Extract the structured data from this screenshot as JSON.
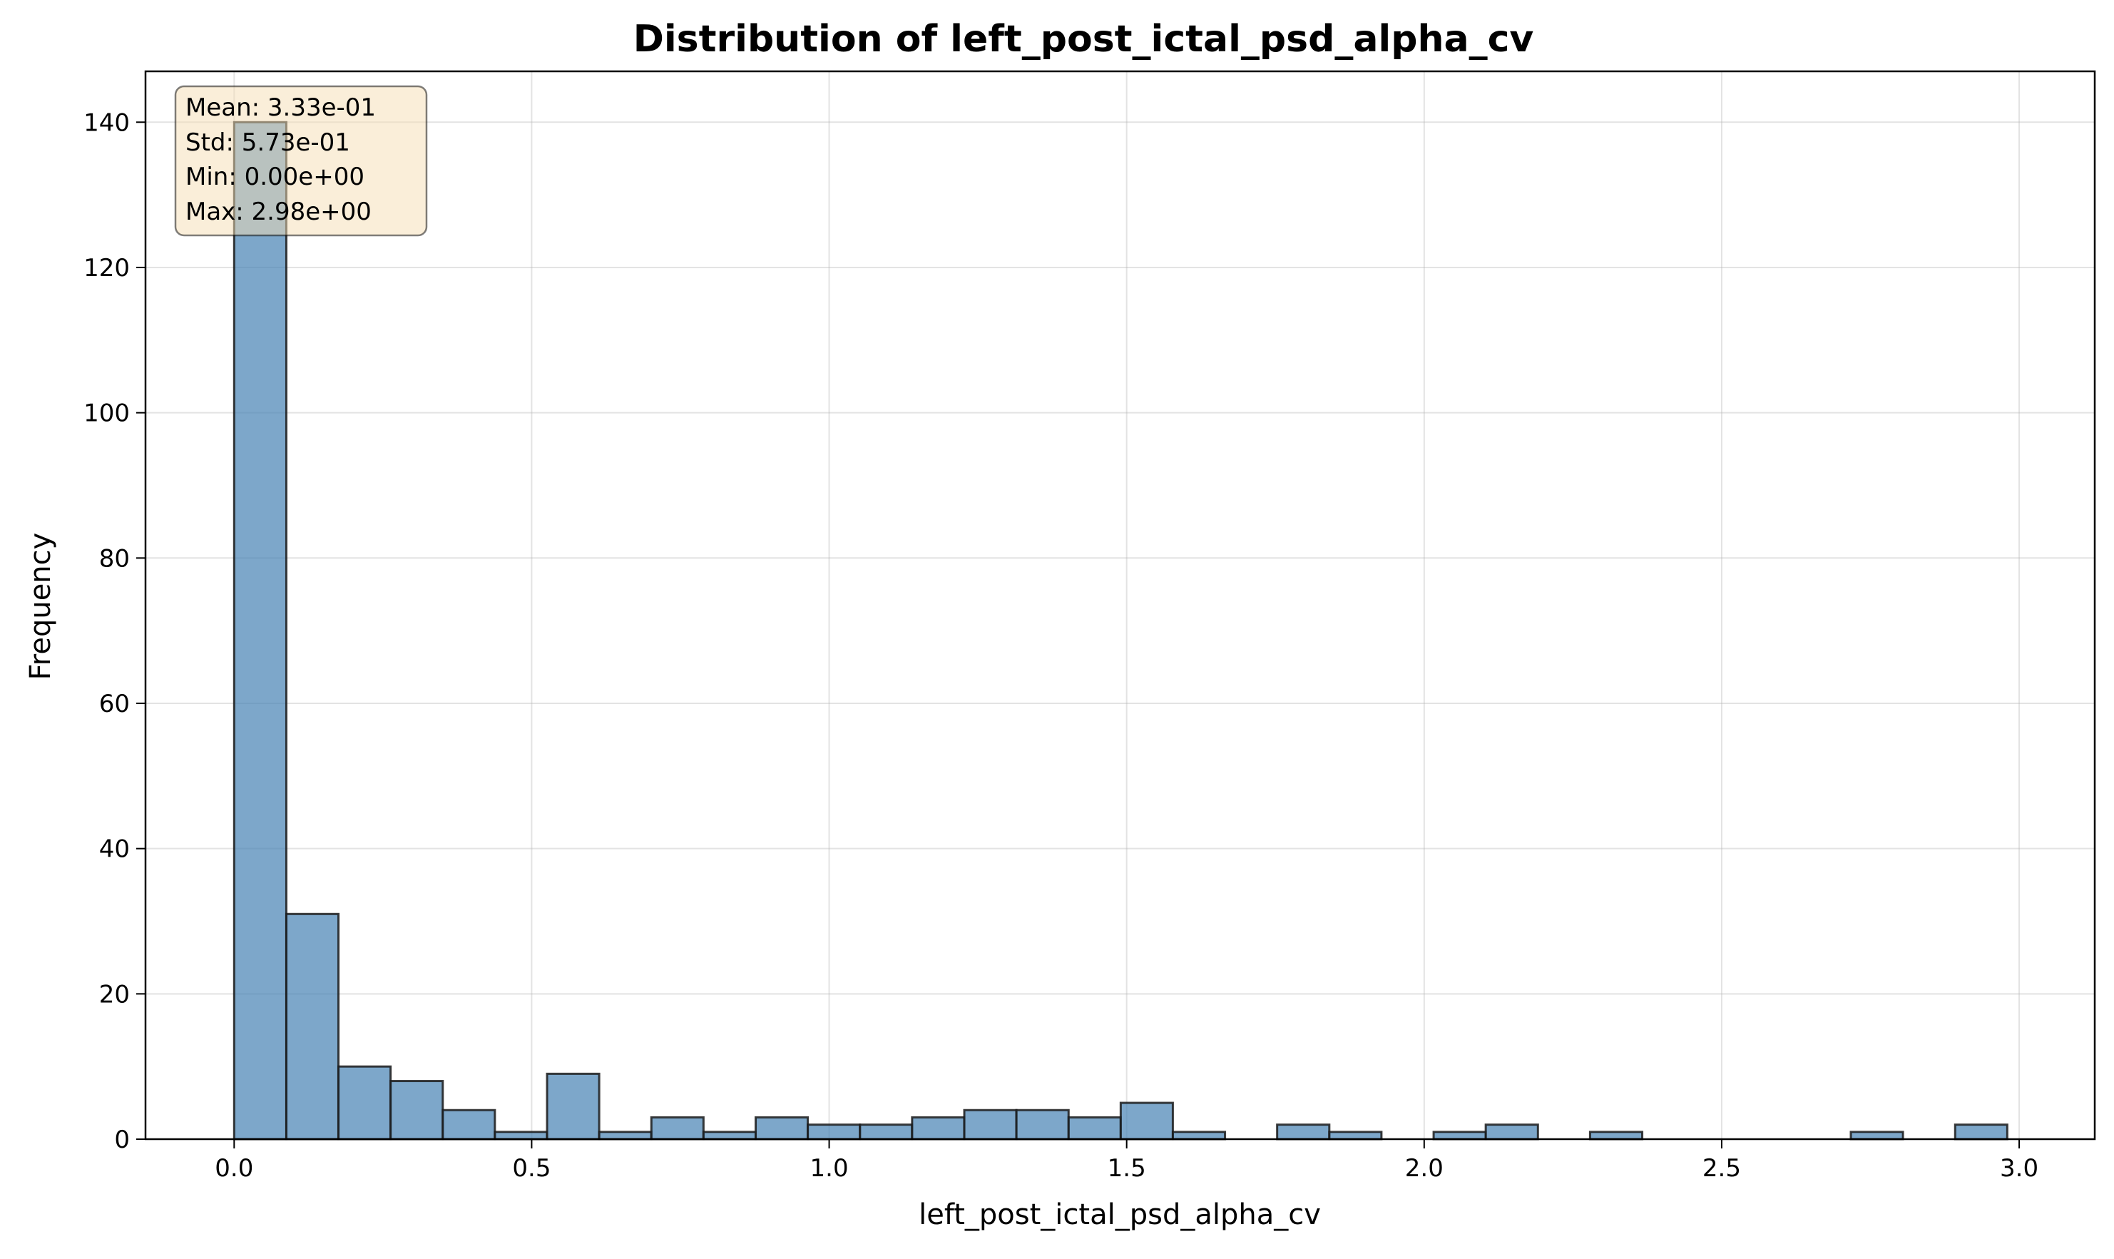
{
  "chart_data": {
    "type": "bar",
    "title": "Distribution of left_post_ictal_psd_alpha_cv",
    "xlabel": "left_post_ictal_psd_alpha_cv",
    "ylabel": "Frequency",
    "xlim": [
      -0.149,
      3.127
    ],
    "ylim": [
      0,
      147
    ],
    "x_ticks": [
      "0.0",
      "0.5",
      "1.0",
      "1.5",
      "2.0",
      "2.5",
      "3.0"
    ],
    "y_ticks": [
      "0",
      "20",
      "40",
      "60",
      "80",
      "100",
      "120",
      "140"
    ],
    "grid": true,
    "bar_color": "#4682b4",
    "bin_edges": [
      0.0,
      0.0877,
      0.1753,
      0.2629,
      0.3506,
      0.4382,
      0.5259,
      0.6135,
      0.7012,
      0.7888,
      0.8765,
      0.9641,
      1.0518,
      1.1394,
      1.2271,
      1.3147,
      1.4024,
      1.49,
      1.5776,
      1.6653,
      1.7529,
      1.8406,
      1.9282,
      2.0159,
      2.1035,
      2.1912,
      2.2788,
      2.3665,
      2.4541,
      2.5418,
      2.6294,
      2.7171,
      2.8047,
      2.8924,
      2.98
    ],
    "values": [
      140,
      31,
      10,
      8,
      4,
      1,
      9,
      1,
      3,
      1,
      3,
      2,
      2,
      3,
      4,
      4,
      3,
      5,
      1,
      0,
      2,
      1,
      0,
      1,
      2,
      0,
      1,
      0,
      0,
      0,
      0,
      1,
      0,
      2
    ],
    "annotations": {
      "stats_lines": [
        "Mean: 3.33e-01",
        "Std: 5.73e-01",
        "Min: 0.00e+00",
        "Max: 2.98e+00"
      ],
      "box_color": "#f5deb3",
      "placement": "top-left"
    }
  }
}
